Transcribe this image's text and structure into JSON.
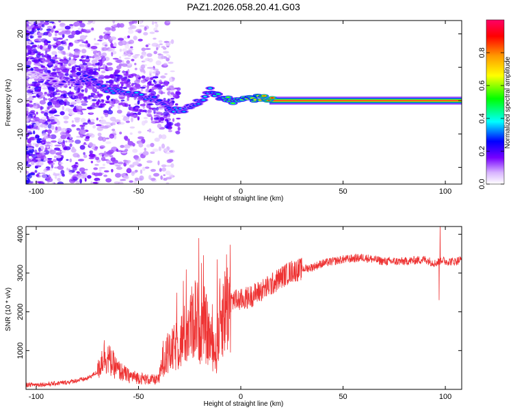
{
  "chart_data": [
    {
      "type": "heatmap",
      "title": "PAZ1.2026.058.20.41.G03",
      "xlabel": "Height of straight line (km)",
      "ylabel": "Frequency (Hz)",
      "xlim": [
        -105,
        108
      ],
      "ylim": [
        -25,
        24
      ],
      "xticks": [
        -100,
        -50,
        0,
        50,
        100
      ],
      "xtick_labels": [
        "-100",
        "-50",
        "0",
        "50",
        "100"
      ],
      "yticks": [
        20,
        10,
        0,
        -10,
        -20
      ],
      "ytick_labels": [
        "20",
        "10",
        "0",
        "-10",
        "-20"
      ],
      "colorbar": {
        "label": "Normalized spectral amplitude",
        "range": [
          0,
          1
        ],
        "ticks": [
          0.0,
          0.2,
          0.4,
          0.6,
          0.8
        ],
        "tick_labels": [
          "0.0",
          "0.2",
          "0.4",
          "0.6",
          "0.8"
        ],
        "colors": [
          "#ffffff",
          "#cc99ff",
          "#6600ff",
          "#0000ff",
          "#00ffff",
          "#00ff00",
          "#ffff00",
          "#ff8800",
          "#ff0000",
          "#ff0066"
        ]
      },
      "ridge_track": {
        "x": [
          -103,
          -95,
          -90,
          -85,
          -80,
          -75,
          -70,
          -65,
          -60,
          -55,
          -50,
          -45,
          -40,
          -35,
          -32,
          -28,
          -25,
          -20,
          -18,
          -15,
          -12,
          -10,
          -5,
          -2,
          0,
          3,
          6,
          10,
          14,
          20,
          40,
          60,
          80,
          97,
          100,
          108
        ],
        "y": [
          8,
          7,
          5,
          6,
          5,
          7,
          5,
          3,
          3,
          2,
          1.5,
          1,
          0,
          -2,
          -3,
          -3,
          -2,
          0,
          1,
          3,
          2,
          1,
          0,
          0,
          0,
          0.5,
          0.5,
          1,
          0.5,
          0,
          0,
          0,
          0,
          0,
          0,
          0
        ],
        "amplitude": [
          0.1,
          0.15,
          0.2,
          0.25,
          0.25,
          0.3,
          0.3,
          0.35,
          0.35,
          0.35,
          0.4,
          0.35,
          0.3,
          0.3,
          0.4,
          0.35,
          0.3,
          0.35,
          0.4,
          0.4,
          0.45,
          0.5,
          0.6,
          0.55,
          0.6,
          0.7,
          0.7,
          0.8,
          0.9,
          0.95,
          0.95,
          0.95,
          0.95,
          0.95,
          0.95,
          0.95
        ]
      }
    },
    {
      "type": "line",
      "xlabel": "Height of straight line (km)",
      "ylabel": "SNR (10 * v/v)",
      "xlim": [
        -105,
        108
      ],
      "ylim": [
        0,
        4200
      ],
      "xticks": [
        -100,
        -50,
        0,
        50,
        100
      ],
      "xtick_labels": [
        "-100",
        "-50",
        "0",
        "50",
        "100"
      ],
      "yticks": [
        1000,
        2000,
        3000,
        4000
      ],
      "ytick_labels": [
        "1000",
        "2000",
        "3000",
        "4000"
      ],
      "color": "#ee3333",
      "series": [
        {
          "name": "SNR",
          "x": [
            -105,
            -95,
            -85,
            -75,
            -70,
            -67,
            -65,
            -60,
            -55,
            -50,
            -45,
            -40,
            -38,
            -35,
            -30,
            -26,
            -22,
            -20,
            -18,
            -15,
            -12,
            -10,
            -8,
            -6,
            -4,
            -2,
            0,
            5,
            10,
            15,
            20,
            25,
            30,
            35,
            40,
            50,
            60,
            70,
            80,
            90,
            95,
            97,
            98,
            100,
            105,
            108
          ],
          "y": [
            120,
            130,
            180,
            280,
            450,
            900,
            800,
            500,
            350,
            300,
            250,
            250,
            800,
            900,
            1200,
            1500,
            1900,
            1600,
            1700,
            1300,
            900,
            1900,
            2000,
            2200,
            2300,
            2300,
            2300,
            2400,
            2550,
            2700,
            2900,
            3050,
            3100,
            3150,
            3250,
            3350,
            3400,
            3300,
            3300,
            3350,
            3250,
            3300,
            3350,
            3300,
            3300,
            3350
          ]
        }
      ],
      "spikes": [
        {
          "x": -20.5,
          "y": 3900
        },
        {
          "x": -11.5,
          "y": 3350
        },
        {
          "x": -7,
          "y": 3480
        },
        {
          "x": 97.5,
          "y": 4200
        },
        {
          "x": 97,
          "y": 2300
        }
      ]
    }
  ]
}
